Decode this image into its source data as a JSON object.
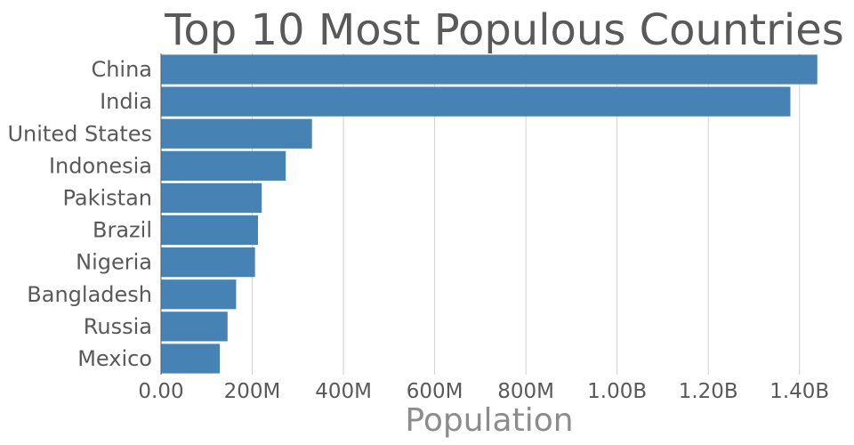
{
  "chart_data": {
    "type": "bar",
    "orientation": "horizontal",
    "title": "Top 10 Most Populous Countries",
    "xlabel": "Population",
    "ylabel": "",
    "categories": [
      "China",
      "India",
      "United States",
      "Indonesia",
      "Pakistan",
      "Brazil",
      "Nigeria",
      "Bangladesh",
      "Russia",
      "Mexico"
    ],
    "values": [
      1439000000,
      1380000000,
      331000000,
      273500000,
      220900000,
      212600000,
      206100000,
      164700000,
      145900000,
      128900000
    ],
    "xlim": [
      0,
      1500000000
    ],
    "xticks": [
      0,
      200000000,
      400000000,
      600000000,
      800000000,
      1000000000,
      1200000000,
      1400000000
    ],
    "xtick_labels": [
      "0.00",
      "200M",
      "400M",
      "600M",
      "800M",
      "1.00B",
      "1.20B",
      "1.40B"
    ],
    "grid": "vertical",
    "bar_color": "#4682b4"
  }
}
